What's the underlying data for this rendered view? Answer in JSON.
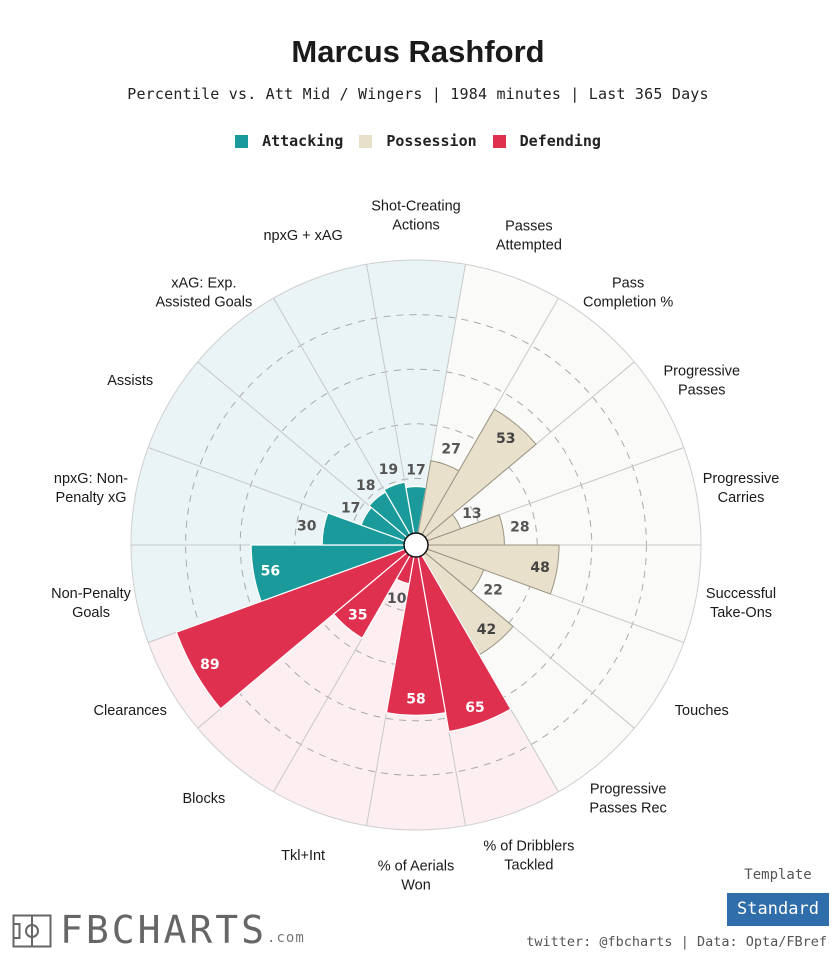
{
  "header": {
    "title": "Marcus Rashford",
    "subtitle": "Percentile vs. Att Mid / Wingers | 1984 minutes | Last 365 Days"
  },
  "legend": [
    {
      "label": "Attacking",
      "color": "#1a9a9b"
    },
    {
      "label": "Possession",
      "color": "#e8e0cb"
    },
    {
      "label": "Defending",
      "color": "#e0304f"
    }
  ],
  "chart_data": {
    "type": "polar-bar",
    "title": "Marcus Rashford",
    "subtitle": "Percentile vs. Att Mid / Wingers | 1984 minutes | Last 365 Days",
    "rlim": [
      0,
      100
    ],
    "gridlines": [
      20,
      40,
      60,
      80
    ],
    "categories": [
      {
        "label": "Shot-Creating Actions",
        "value": 17,
        "group": "Attacking"
      },
      {
        "label": "Passes Attempted",
        "value": 27,
        "group": "Possession"
      },
      {
        "label": "Pass Completion %",
        "value": 53,
        "group": "Possession"
      },
      {
        "label": "Progressive Passes",
        "value": 13,
        "group": "Possession"
      },
      {
        "label": "Progressive Carries",
        "value": 28,
        "group": "Possession"
      },
      {
        "label": "Successful Take-Ons",
        "value": 48,
        "group": "Possession"
      },
      {
        "label": "Touches",
        "value": 22,
        "group": "Possession"
      },
      {
        "label": "Progressive Passes Rec",
        "value": 42,
        "group": "Possession"
      },
      {
        "label": "% of Dribblers Tackled",
        "value": 65,
        "group": "Defending"
      },
      {
        "label": "% of Aerials Won",
        "value": 58,
        "group": "Defending"
      },
      {
        "label": "Tkl+Int",
        "value": 10,
        "group": "Defending"
      },
      {
        "label": "Blocks",
        "value": 35,
        "group": "Defending"
      },
      {
        "label": "Clearances",
        "value": 89,
        "group": "Defending"
      },
      {
        "label": "Non-Penalty Goals",
        "value": 56,
        "group": "Attacking"
      },
      {
        "label": "npxG: Non-Penalty xG",
        "value": 30,
        "group": "Attacking"
      },
      {
        "label": "Assists",
        "value": 17,
        "group": "Attacking"
      },
      {
        "label": "xAG: Exp. Assisted Goals",
        "value": 18,
        "group": "Attacking"
      },
      {
        "label": "npxG + xAG",
        "value": 19,
        "group": "Attacking"
      }
    ]
  },
  "colors": {
    "Attacking": {
      "bar": "#1a9a9b",
      "bg": "#eaf4f6",
      "text": "#ffffff"
    },
    "Possession": {
      "bar": "#e8e0cb",
      "bg": "#fafaf8",
      "text": "#444444"
    },
    "Defending": {
      "bar": "#e0304f",
      "bg": "#fdeef1",
      "text": "#ffffff"
    }
  },
  "footer": {
    "template_label": "Template",
    "template_value": "Standard",
    "brand_name": "FBCHARTS",
    "brand_suffix": ".com",
    "credit": "twitter: @fbcharts | Data: Opta/FBref"
  }
}
